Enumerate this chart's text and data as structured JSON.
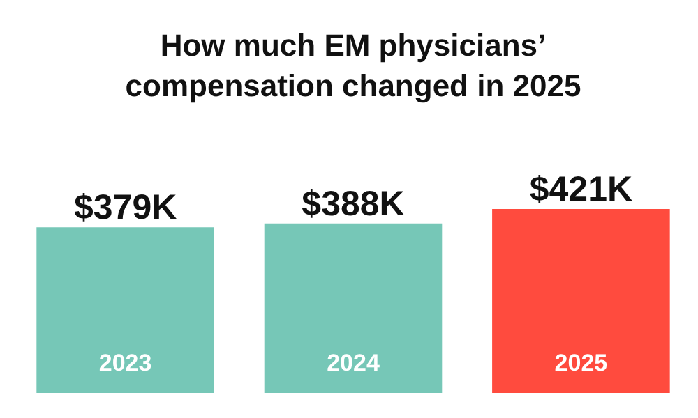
{
  "chart_data": {
    "type": "bar",
    "title": "How much EM physicians’\ncompensation changed in 2025",
    "categories": [
      "2023",
      "2024",
      "2025"
    ],
    "values": [
      379,
      388,
      421
    ],
    "colors": [
      "#76c7b7",
      "#76c7b7",
      "#ff4b3e"
    ],
    "value_labels": [
      "$379K",
      "$388K",
      "$421K"
    ],
    "legend": false
  }
}
